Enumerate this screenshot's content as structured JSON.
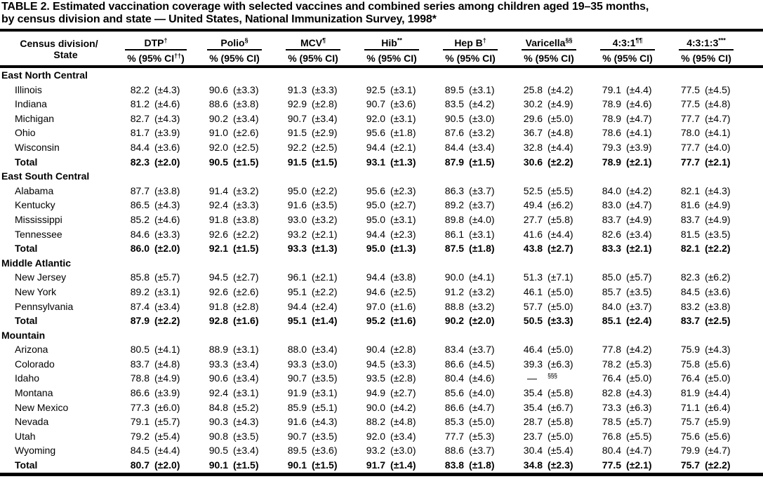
{
  "title": {
    "line1": "TABLE 2. Estimated vaccination coverage with selected vaccines and combined series among children aged 19–35 months,",
    "line2": "by census division and state — United States, National Immunization Survey, 1998*"
  },
  "header": {
    "col1_line1": "Census division/",
    "col1_line2": "State",
    "groups": [
      {
        "label": "DTP",
        "sup": "†",
        "sub_pre": "% (95% CI",
        "sub_sup": "††",
        "sub_post": ")"
      },
      {
        "label": "Polio",
        "sup": "§",
        "sub_pre": "% (95% CI",
        "sub_sup": "",
        "sub_post": ")"
      },
      {
        "label": "MCV",
        "sup": "¶",
        "sub_pre": "% (95% CI",
        "sub_sup": "",
        "sub_post": ")"
      },
      {
        "label": "Hib",
        "sup": "**",
        "sub_pre": "% (95% CI",
        "sub_sup": "",
        "sub_post": ")"
      },
      {
        "label": "Hep B",
        "sup": "†",
        "sub_pre": "% (95% CI",
        "sub_sup": "",
        "sub_post": ")"
      },
      {
        "label": "Varicella",
        "sup": "§§",
        "sub_pre": "% (95% CI",
        "sub_sup": "",
        "sub_post": ")"
      },
      {
        "label": "4:3:1",
        "sup": "¶¶",
        "sub_pre": "% (95% CI",
        "sub_sup": "",
        "sub_post": ")"
      },
      {
        "label": "4:3:1:3",
        "sup": "***",
        "sub_pre": "% (95% CI",
        "sub_sup": "",
        "sub_post": ")"
      }
    ]
  },
  "sections": [
    {
      "name": "East North Central",
      "rows": [
        {
          "state": "Illinois",
          "total": false,
          "cells": [
            [
              "82.2",
              "(±4.3)"
            ],
            [
              "90.6",
              "(±3.3)"
            ],
            [
              "91.3",
              "(±3.3)"
            ],
            [
              "92.5",
              "(±3.1)"
            ],
            [
              "89.5",
              "(±3.1)"
            ],
            [
              "25.8",
              "(±4.2)"
            ],
            [
              "79.1",
              "(±4.4)"
            ],
            [
              "77.5",
              "(±4.5)"
            ]
          ]
        },
        {
          "state": "Indiana",
          "total": false,
          "cells": [
            [
              "81.2",
              "(±4.6)"
            ],
            [
              "88.6",
              "(±3.8)"
            ],
            [
              "92.9",
              "(±2.8)"
            ],
            [
              "90.7",
              "(±3.6)"
            ],
            [
              "83.5",
              "(±4.2)"
            ],
            [
              "30.2",
              "(±4.9)"
            ],
            [
              "78.9",
              "(±4.6)"
            ],
            [
              "77.5",
              "(±4.8)"
            ]
          ]
        },
        {
          "state": "Michigan",
          "total": false,
          "cells": [
            [
              "82.7",
              "(±4.3)"
            ],
            [
              "90.2",
              "(±3.4)"
            ],
            [
              "90.7",
              "(±3.4)"
            ],
            [
              "92.0",
              "(±3.1)"
            ],
            [
              "90.5",
              "(±3.0)"
            ],
            [
              "29.6",
              "(±5.0)"
            ],
            [
              "78.9",
              "(±4.7)"
            ],
            [
              "77.7",
              "(±4.7)"
            ]
          ]
        },
        {
          "state": "Ohio",
          "total": false,
          "cells": [
            [
              "81.7",
              "(±3.9)"
            ],
            [
              "91.0",
              "(±2.6)"
            ],
            [
              "91.5",
              "(±2.9)"
            ],
            [
              "95.6",
              "(±1.8)"
            ],
            [
              "87.6",
              "(±3.2)"
            ],
            [
              "36.7",
              "(±4.8)"
            ],
            [
              "78.6",
              "(±4.1)"
            ],
            [
              "78.0",
              "(±4.1)"
            ]
          ]
        },
        {
          "state": "Wisconsin",
          "total": false,
          "cells": [
            [
              "84.4",
              "(±3.6)"
            ],
            [
              "92.0",
              "(±2.5)"
            ],
            [
              "92.2",
              "(±2.5)"
            ],
            [
              "94.4",
              "(±2.1)"
            ],
            [
              "84.4",
              "(±3.4)"
            ],
            [
              "32.8",
              "(±4.4)"
            ],
            [
              "79.3",
              "(±3.9)"
            ],
            [
              "77.7",
              "(±4.0)"
            ]
          ]
        },
        {
          "state": "Total",
          "total": true,
          "cells": [
            [
              "82.3",
              "(±2.0)"
            ],
            [
              "90.5",
              "(±1.5)"
            ],
            [
              "91.5",
              "(±1.5)"
            ],
            [
              "93.1",
              "(±1.3)"
            ],
            [
              "87.9",
              "(±1.5)"
            ],
            [
              "30.6",
              "(±2.2)"
            ],
            [
              "78.9",
              "(±2.1)"
            ],
            [
              "77.7",
              "(±2.1)"
            ]
          ]
        }
      ]
    },
    {
      "name": "East South Central",
      "rows": [
        {
          "state": "Alabama",
          "total": false,
          "cells": [
            [
              "87.7",
              "(±3.8)"
            ],
            [
              "91.4",
              "(±3.2)"
            ],
            [
              "95.0",
              "(±2.2)"
            ],
            [
              "95.6",
              "(±2.3)"
            ],
            [
              "86.3",
              "(±3.7)"
            ],
            [
              "52.5",
              "(±5.5)"
            ],
            [
              "84.0",
              "(±4.2)"
            ],
            [
              "82.1",
              "(±4.3)"
            ]
          ]
        },
        {
          "state": "Kentucky",
          "total": false,
          "cells": [
            [
              "86.5",
              "(±4.3)"
            ],
            [
              "92.4",
              "(±3.3)"
            ],
            [
              "91.6",
              "(±3.5)"
            ],
            [
              "95.0",
              "(±2.7)"
            ],
            [
              "89.2",
              "(±3.7)"
            ],
            [
              "49.4",
              "(±6.2)"
            ],
            [
              "83.0",
              "(±4.7)"
            ],
            [
              "81.6",
              "(±4.9)"
            ]
          ]
        },
        {
          "state": "Mississippi",
          "total": false,
          "cells": [
            [
              "85.2",
              "(±4.6)"
            ],
            [
              "91.8",
              "(±3.8)"
            ],
            [
              "93.0",
              "(±3.2)"
            ],
            [
              "95.0",
              "(±3.1)"
            ],
            [
              "89.8",
              "(±4.0)"
            ],
            [
              "27.7",
              "(±5.8)"
            ],
            [
              "83.7",
              "(±4.9)"
            ],
            [
              "83.7",
              "(±4.9)"
            ]
          ]
        },
        {
          "state": "Tennessee",
          "total": false,
          "cells": [
            [
              "84.6",
              "(±3.3)"
            ],
            [
              "92.6",
              "(±2.2)"
            ],
            [
              "93.2",
              "(±2.1)"
            ],
            [
              "94.4",
              "(±2.3)"
            ],
            [
              "86.1",
              "(±3.1)"
            ],
            [
              "41.6",
              "(±4.4)"
            ],
            [
              "82.6",
              "(±3.4)"
            ],
            [
              "81.5",
              "(±3.5)"
            ]
          ]
        },
        {
          "state": "Total",
          "total": true,
          "cells": [
            [
              "86.0",
              "(±2.0)"
            ],
            [
              "92.1",
              "(±1.5)"
            ],
            [
              "93.3",
              "(±1.3)"
            ],
            [
              "95.0",
              "(±1.3)"
            ],
            [
              "87.5",
              "(±1.8)"
            ],
            [
              "43.8",
              "(±2.7)"
            ],
            [
              "83.3",
              "(±2.1)"
            ],
            [
              "82.1",
              "(±2.2)"
            ]
          ]
        }
      ]
    },
    {
      "name": "Middle Atlantic",
      "rows": [
        {
          "state": "New Jersey",
          "total": false,
          "cells": [
            [
              "85.8",
              "(±5.7)"
            ],
            [
              "94.5",
              "(±2.7)"
            ],
            [
              "96.1",
              "(±2.1)"
            ],
            [
              "94.4",
              "(±3.8)"
            ],
            [
              "90.0",
              "(±4.1)"
            ],
            [
              "51.3",
              "(±7.1)"
            ],
            [
              "85.0",
              "(±5.7)"
            ],
            [
              "82.3",
              "(±6.2)"
            ]
          ]
        },
        {
          "state": "New York",
          "total": false,
          "cells": [
            [
              "89.2",
              "(±3.1)"
            ],
            [
              "92.6",
              "(±2.6)"
            ],
            [
              "95.1",
              "(±2.2)"
            ],
            [
              "94.6",
              "(±2.5)"
            ],
            [
              "91.2",
              "(±3.2)"
            ],
            [
              "46.1",
              "(±5.0)"
            ],
            [
              "85.7",
              "(±3.5)"
            ],
            [
              "84.5",
              "(±3.6)"
            ]
          ]
        },
        {
          "state": "Pennsylvania",
          "total": false,
          "cells": [
            [
              "87.4",
              "(±3.4)"
            ],
            [
              "91.8",
              "(±2.8)"
            ],
            [
              "94.4",
              "(±2.4)"
            ],
            [
              "97.0",
              "(±1.6)"
            ],
            [
              "88.8",
              "(±3.2)"
            ],
            [
              "57.7",
              "(±5.0)"
            ],
            [
              "84.0",
              "(±3.7)"
            ],
            [
              "83.2",
              "(±3.8)"
            ]
          ]
        },
        {
          "state": "Total",
          "total": true,
          "cells": [
            [
              "87.9",
              "(±2.2)"
            ],
            [
              "92.8",
              "(±1.6)"
            ],
            [
              "95.1",
              "(±1.4)"
            ],
            [
              "95.2",
              "(±1.6)"
            ],
            [
              "90.2",
              "(±2.0)"
            ],
            [
              "50.5",
              "(±3.3)"
            ],
            [
              "85.1",
              "(±2.4)"
            ],
            [
              "83.7",
              "(±2.5)"
            ]
          ]
        }
      ]
    },
    {
      "name": "Mountain",
      "rows": [
        {
          "state": "Arizona",
          "total": false,
          "cells": [
            [
              "80.5",
              "(±4.1)"
            ],
            [
              "88.9",
              "(±3.1)"
            ],
            [
              "88.0",
              "(±3.4)"
            ],
            [
              "90.4",
              "(±2.8)"
            ],
            [
              "83.4",
              "(±3.7)"
            ],
            [
              "46.4",
              "(±5.0)"
            ],
            [
              "77.8",
              "(±4.2)"
            ],
            [
              "75.9",
              "(±4.3)"
            ]
          ]
        },
        {
          "state": "Colorado",
          "total": false,
          "cells": [
            [
              "83.7",
              "(±4.8)"
            ],
            [
              "93.3",
              "(±3.4)"
            ],
            [
              "93.3",
              "(±3.0)"
            ],
            [
              "94.5",
              "(±3.3)"
            ],
            [
              "86.6",
              "(±4.5)"
            ],
            [
              "39.3",
              "(±6.3)"
            ],
            [
              "78.2",
              "(±5.3)"
            ],
            [
              "75.8",
              "(±5.6)"
            ]
          ]
        },
        {
          "state": "Idaho",
          "total": false,
          "cells": [
            [
              "78.8",
              "(±4.9)"
            ],
            [
              "90.6",
              "(±3.4)"
            ],
            [
              "90.7",
              "(±3.5)"
            ],
            [
              "93.5",
              "(±2.8)"
            ],
            [
              "80.4",
              "(±4.6)"
            ],
            [
              "—",
              "§§§"
            ],
            [
              "76.4",
              "(±5.0)"
            ],
            [
              "76.4",
              "(±5.0)"
            ]
          ]
        },
        {
          "state": "Montana",
          "total": false,
          "cells": [
            [
              "86.6",
              "(±3.9)"
            ],
            [
              "92.4",
              "(±3.1)"
            ],
            [
              "91.9",
              "(±3.1)"
            ],
            [
              "94.9",
              "(±2.7)"
            ],
            [
              "85.6",
              "(±4.0)"
            ],
            [
              "35.4",
              "(±5.8)"
            ],
            [
              "82.8",
              "(±4.3)"
            ],
            [
              "81.9",
              "(±4.4)"
            ]
          ]
        },
        {
          "state": "New Mexico",
          "total": false,
          "cells": [
            [
              "77.3",
              "(±6.0)"
            ],
            [
              "84.8",
              "(±5.2)"
            ],
            [
              "85.9",
              "(±5.1)"
            ],
            [
              "90.0",
              "(±4.2)"
            ],
            [
              "86.6",
              "(±4.7)"
            ],
            [
              "35.4",
              "(±6.7)"
            ],
            [
              "73.3",
              "(±6.3)"
            ],
            [
              "71.1",
              "(±6.4)"
            ]
          ]
        },
        {
          "state": "Nevada",
          "total": false,
          "cells": [
            [
              "79.1",
              "(±5.7)"
            ],
            [
              "90.3",
              "(±4.3)"
            ],
            [
              "91.6",
              "(±4.3)"
            ],
            [
              "88.2",
              "(±4.8)"
            ],
            [
              "85.3",
              "(±5.0)"
            ],
            [
              "28.7",
              "(±5.8)"
            ],
            [
              "78.5",
              "(±5.7)"
            ],
            [
              "75.7",
              "(±5.9)"
            ]
          ]
        },
        {
          "state": "Utah",
          "total": false,
          "cells": [
            [
              "79.2",
              "(±5.4)"
            ],
            [
              "90.8",
              "(±3.5)"
            ],
            [
              "90.7",
              "(±3.5)"
            ],
            [
              "92.0",
              "(±3.4)"
            ],
            [
              "77.7",
              "(±5.3)"
            ],
            [
              "23.7",
              "(±5.0)"
            ],
            [
              "76.8",
              "(±5.5)"
            ],
            [
              "75.6",
              "(±5.6)"
            ]
          ]
        },
        {
          "state": "Wyoming",
          "total": false,
          "cells": [
            [
              "84.5",
              "(±4.4)"
            ],
            [
              "90.5",
              "(±3.4)"
            ],
            [
              "89.5",
              "(±3.6)"
            ],
            [
              "93.2",
              "(±3.0)"
            ],
            [
              "88.6",
              "(±3.7)"
            ],
            [
              "30.4",
              "(±5.4)"
            ],
            [
              "80.4",
              "(±4.7)"
            ],
            [
              "79.9",
              "(±4.7)"
            ]
          ]
        },
        {
          "state": "Total",
          "total": true,
          "cells": [
            [
              "80.7",
              "(±2.0)"
            ],
            [
              "90.1",
              "(±1.5)"
            ],
            [
              "90.1",
              "(±1.5)"
            ],
            [
              "91.7",
              "(±1.4)"
            ],
            [
              "83.8",
              "(±1.8)"
            ],
            [
              "34.8",
              "(±2.3)"
            ],
            [
              "77.5",
              "(±2.1)"
            ],
            [
              "75.7",
              "(±2.2)"
            ]
          ]
        }
      ]
    }
  ]
}
